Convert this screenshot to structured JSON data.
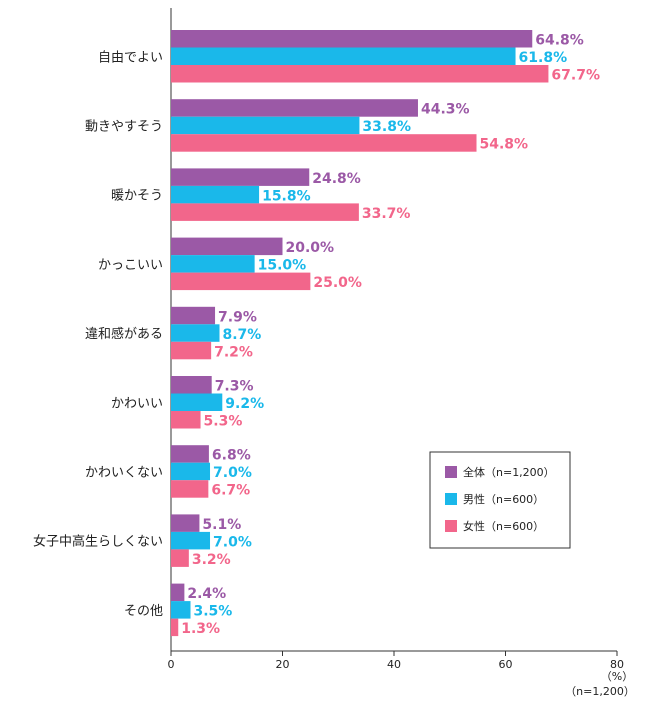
{
  "chart_data": {
    "type": "bar",
    "orientation": "horizontal",
    "categories": [
      "自由でよい",
      "動きやすそう",
      "暖かそう",
      "かっこいい",
      "違和感がある",
      "かわいい",
      "かわいくない",
      "女子中高生らしくない",
      "その他"
    ],
    "series": [
      {
        "name": "全体（n=1,200）",
        "color": "#9b59a6",
        "values": [
          64.8,
          44.3,
          24.8,
          20.0,
          7.9,
          7.3,
          6.8,
          5.1,
          2.4
        ],
        "labels": [
          "64.8%",
          "44.3%",
          "24.8%",
          "20.0%",
          "7.9%",
          "7.3%",
          "6.8%",
          "5.1%",
          "2.4%"
        ]
      },
      {
        "name": "男性（n=600）",
        "color": "#1ab8ea",
        "values": [
          61.8,
          33.8,
          15.8,
          15.0,
          8.7,
          9.2,
          7.0,
          7.0,
          3.5
        ],
        "labels": [
          "61.8%",
          "33.8%",
          "15.8%",
          "15.0%",
          "8.7%",
          "9.2%",
          "7.0%",
          "7.0%",
          "3.5%"
        ]
      },
      {
        "name": "女性（n=600）",
        "color": "#f2668b",
        "values": [
          67.7,
          54.8,
          33.7,
          25.0,
          7.2,
          5.3,
          6.7,
          3.2,
          1.3
        ],
        "labels": [
          "67.7%",
          "54.8%",
          "33.7%",
          "25.0%",
          "7.2%",
          "5.3%",
          "6.7%",
          "3.2%",
          "1.3%"
        ]
      }
    ],
    "xlim": [
      0,
      80
    ],
    "xticks": [
      "0",
      "20",
      "40",
      "60",
      "80"
    ],
    "unit_label": "（%）",
    "sample_label": "（n=1,200）",
    "legend_position": "lower-right",
    "grid": false
  }
}
